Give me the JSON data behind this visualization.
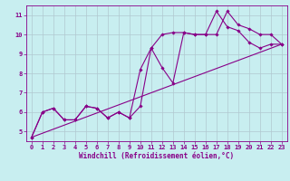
{
  "background_color": "#c8eef0",
  "plot_bg_color": "#c8eef0",
  "grid_color": "#b0c8d0",
  "line_color": "#880088",
  "marker_color": "#880088",
  "xlabel": "Windchill (Refroidissement éolien,°C)",
  "xlim": [
    -0.5,
    23.5
  ],
  "ylim": [
    4.5,
    11.5
  ],
  "xticks": [
    0,
    1,
    2,
    3,
    4,
    5,
    6,
    7,
    8,
    9,
    10,
    11,
    12,
    13,
    14,
    15,
    16,
    17,
    18,
    19,
    20,
    21,
    22,
    23
  ],
  "yticks": [
    5,
    6,
    7,
    8,
    9,
    10,
    11
  ],
  "series1_x": [
    0,
    1,
    2,
    3,
    4,
    5,
    6,
    7,
    8,
    9,
    10,
    11,
    12,
    13,
    14,
    15,
    16,
    17,
    18,
    19,
    20,
    21,
    22,
    23
  ],
  "series1_y": [
    4.7,
    6.0,
    6.2,
    5.6,
    5.6,
    6.3,
    6.2,
    5.7,
    6.0,
    5.7,
    6.3,
    9.3,
    8.3,
    7.5,
    10.1,
    10.0,
    10.0,
    10.0,
    11.2,
    10.5,
    10.3,
    10.0,
    10.0,
    9.5
  ],
  "series2_x": [
    0,
    1,
    2,
    3,
    4,
    5,
    6,
    7,
    8,
    9,
    10,
    11,
    12,
    13,
    14,
    15,
    16,
    17,
    18,
    19,
    20,
    21,
    22,
    23
  ],
  "series2_y": [
    4.7,
    6.0,
    6.2,
    5.6,
    5.6,
    6.3,
    6.2,
    5.7,
    6.0,
    5.7,
    8.2,
    9.3,
    10.0,
    10.1,
    10.1,
    10.0,
    10.0,
    11.2,
    10.4,
    10.2,
    9.6,
    9.3,
    9.5,
    9.5
  ],
  "series3_x": [
    0,
    23
  ],
  "series3_y": [
    4.7,
    9.5
  ],
  "tick_fontsize": 5,
  "xlabel_fontsize": 5.5
}
